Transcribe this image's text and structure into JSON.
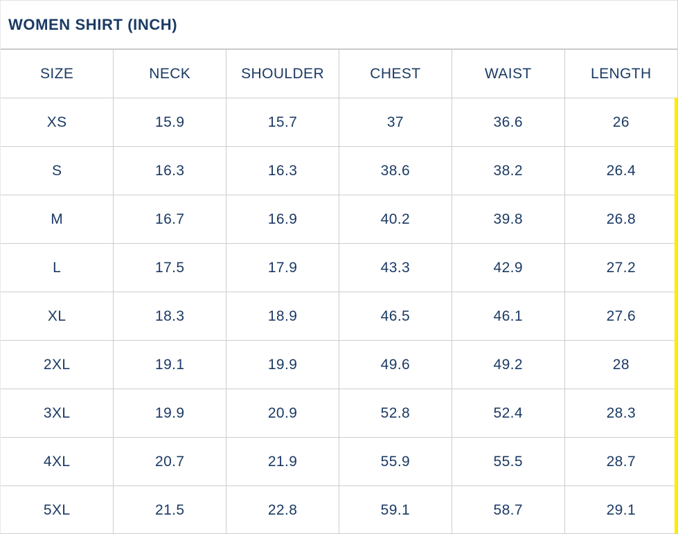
{
  "page": {
    "title": "WOMEN SHIRT (INCH)"
  },
  "colors": {
    "text_navy": "#1b3a64",
    "border_gray": "#cdcdcd",
    "highlight_yellow": "#ffec00",
    "background": "#ffffff"
  },
  "table": {
    "columns": [
      "SIZE",
      "NECK",
      "SHOULDER",
      "CHEST",
      "WAIST",
      "LENGTH"
    ],
    "rows": [
      {
        "size": "XS",
        "neck": "15.9",
        "shoulder": "15.7",
        "chest": "37",
        "waist": "36.6",
        "length": "26"
      },
      {
        "size": "S",
        "neck": "16.3",
        "shoulder": "16.3",
        "chest": "38.6",
        "waist": "38.2",
        "length": "26.4"
      },
      {
        "size": "M",
        "neck": "16.7",
        "shoulder": "16.9",
        "chest": "40.2",
        "waist": "39.8",
        "length": "26.8"
      },
      {
        "size": "L",
        "neck": "17.5",
        "shoulder": "17.9",
        "chest": "43.3",
        "waist": "42.9",
        "length": "27.2"
      },
      {
        "size": "XL",
        "neck": "18.3",
        "shoulder": "18.9",
        "chest": "46.5",
        "waist": "46.1",
        "length": "27.6"
      },
      {
        "size": "2XL",
        "neck": "19.1",
        "shoulder": "19.9",
        "chest": "49.6",
        "waist": "49.2",
        "length": "28"
      },
      {
        "size": "3XL",
        "neck": "19.9",
        "shoulder": "20.9",
        "chest": "52.8",
        "waist": "52.4",
        "length": "28.3"
      },
      {
        "size": "4XL",
        "neck": "20.7",
        "shoulder": "21.9",
        "chest": "55.9",
        "waist": "55.5",
        "length": "28.7"
      },
      {
        "size": "5XL",
        "neck": "21.5",
        "shoulder": "22.8",
        "chest": "59.1",
        "waist": "58.7",
        "length": "29.1"
      }
    ]
  },
  "chart_data": {
    "type": "table",
    "title": "WOMEN SHIRT (INCH)",
    "columns": [
      "SIZE",
      "NECK",
      "SHOULDER",
      "CHEST",
      "WAIST",
      "LENGTH"
    ],
    "rows": [
      [
        "XS",
        15.9,
        15.7,
        37,
        36.6,
        26
      ],
      [
        "S",
        16.3,
        16.3,
        38.6,
        38.2,
        26.4
      ],
      [
        "M",
        16.7,
        16.9,
        40.2,
        39.8,
        26.8
      ],
      [
        "L",
        17.5,
        17.9,
        43.3,
        42.9,
        27.2
      ],
      [
        "XL",
        18.3,
        18.9,
        46.5,
        46.1,
        27.6
      ],
      [
        "2XL",
        19.1,
        19.9,
        49.6,
        49.2,
        28
      ],
      [
        "3XL",
        19.9,
        20.9,
        52.8,
        52.4,
        28.3
      ],
      [
        "4XL",
        20.7,
        21.9,
        55.9,
        55.5,
        28.7
      ],
      [
        "5XL",
        21.5,
        22.8,
        59.1,
        58.7,
        29.1
      ]
    ]
  }
}
